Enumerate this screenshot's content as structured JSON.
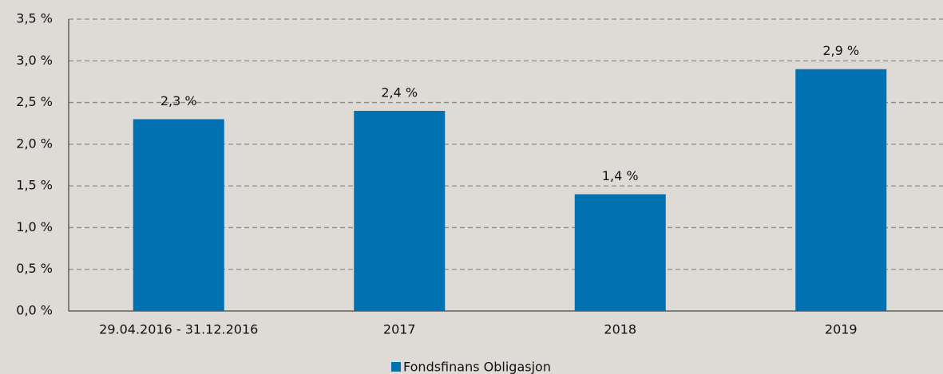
{
  "chart_data": {
    "type": "bar",
    "categories": [
      "29.04.2016 - 31.12.2016",
      "2017",
      "2018",
      "2019"
    ],
    "series": [
      {
        "name": "Fondsfinans Obligasjon",
        "color": "#0072b2",
        "values": [
          2.3,
          2.4,
          1.4,
          2.9
        ],
        "value_labels": [
          "2,3 %",
          "2,4 %",
          "1,4 %",
          "2,9 %"
        ]
      }
    ],
    "ylim": [
      0,
      3.5
    ],
    "yticks": [
      {
        "value": 0,
        "label": "0,0 %"
      },
      {
        "value": 0.5,
        "label": "0,5 %"
      },
      {
        "value": 1,
        "label": "1,0 %"
      },
      {
        "value": 1.5,
        "label": "1,5 %"
      },
      {
        "value": 2,
        "label": "2,0 %"
      },
      {
        "value": 2.5,
        "label": "2,5 %"
      },
      {
        "value": 3,
        "label": "3,0 %"
      },
      {
        "value": 3.5,
        "label": "3,5 %"
      }
    ],
    "grid": true,
    "legend": "bottom"
  }
}
